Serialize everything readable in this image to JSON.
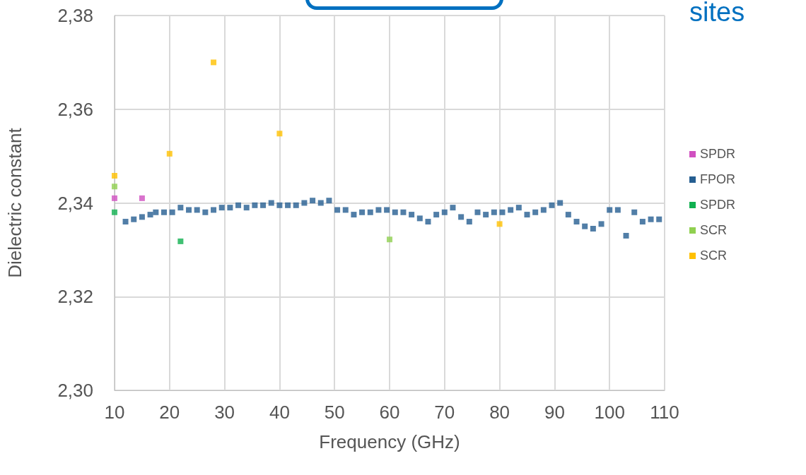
{
  "chart_data": {
    "type": "scatter",
    "xlabel": "Frequency (GHz)",
    "ylabel": "Dielectric constant",
    "annotations": [
      "sites"
    ],
    "xlim": [
      10,
      110
    ],
    "xticks": [
      10,
      20,
      30,
      40,
      50,
      60,
      70,
      80,
      90,
      100,
      110
    ],
    "ylim": [
      2.3,
      2.38
    ],
    "yticks": [
      {
        "value": 2.3,
        "label": "2,30"
      },
      {
        "value": 2.32,
        "label": "2,32"
      },
      {
        "value": 2.34,
        "label": "2,34"
      },
      {
        "value": 2.36,
        "label": "2,36"
      },
      {
        "value": 2.38,
        "label": "2,38"
      }
    ],
    "grid": true,
    "legend": "right",
    "marker": "square",
    "series": [
      {
        "name": "SPDR",
        "color": "#d050c0",
        "x": [
          10,
          15
        ],
        "values": [
          2.341,
          2.341
        ]
      },
      {
        "name": "FPOR",
        "color": "#255e91",
        "x": [
          12,
          13.5,
          15,
          16.5,
          17.5,
          19,
          20.5,
          22,
          23.5,
          25,
          26.5,
          28,
          29.5,
          31,
          32.5,
          34,
          35.5,
          37,
          38.5,
          40,
          41.5,
          43,
          44.5,
          46,
          47.5,
          49,
          50.5,
          52,
          53.5,
          55,
          56.5,
          58,
          59.5,
          61,
          62.5,
          64,
          65.5,
          67,
          68.5,
          70,
          71.5,
          73,
          74.5,
          76,
          77.5,
          79,
          80.5,
          82,
          83.5,
          85,
          86.5,
          88,
          89.5,
          91,
          92.5,
          94,
          95.5,
          97,
          98.5,
          100,
          101.5,
          103,
          104.5,
          106,
          107.5,
          109
        ],
        "values": [
          2.336,
          2.3365,
          2.337,
          2.3375,
          2.338,
          2.338,
          2.338,
          2.339,
          2.3385,
          2.3385,
          2.338,
          2.3385,
          2.339,
          2.339,
          2.3395,
          2.339,
          2.3395,
          2.3395,
          2.34,
          2.3395,
          2.3395,
          2.3395,
          2.34,
          2.3405,
          2.34,
          2.3405,
          2.3385,
          2.3385,
          2.3375,
          2.338,
          2.338,
          2.3385,
          2.3385,
          2.338,
          2.338,
          2.3375,
          2.3367,
          2.336,
          2.3375,
          2.338,
          2.339,
          2.337,
          2.336,
          2.338,
          2.3375,
          2.338,
          2.338,
          2.3385,
          2.339,
          2.3375,
          2.338,
          2.3385,
          2.3395,
          2.34,
          2.3375,
          2.336,
          2.335,
          2.3345,
          2.3355,
          2.3385,
          2.3385,
          2.333,
          2.338,
          2.336,
          2.3365,
          2.3365
        ]
      },
      {
        "name": "SPDR",
        "color": "#10b050",
        "x": [
          10,
          22
        ],
        "values": [
          2.338,
          2.3318
        ]
      },
      {
        "name": "SCR",
        "color": "#90d050",
        "x": [
          10,
          60
        ],
        "values": [
          2.3435,
          2.3322
        ]
      },
      {
        "name": "SCR",
        "color": "#ffc000",
        "x": [
          10,
          20,
          28,
          40,
          80
        ],
        "values": [
          2.3458,
          2.3505,
          2.37,
          2.3548,
          2.3355
        ]
      }
    ]
  }
}
